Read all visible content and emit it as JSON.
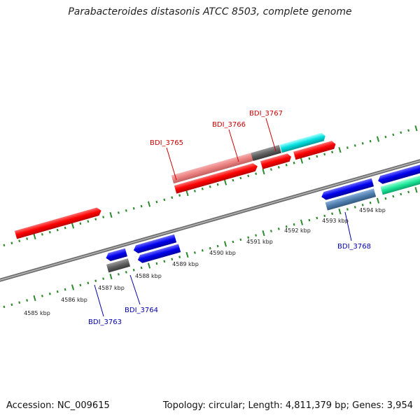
{
  "title": "Parabacteroides distasonis ATCC 8503, complete genome",
  "accession": "Accession: NC_009615",
  "summary": "Topology: circular; Length: 4,811,379 bp; Genes: 3,954",
  "colors": {
    "backbone": "#8a8a8a",
    "tick": "#2e8b2e",
    "label_top": "#cc0000",
    "label_bottom": "#0000aa"
  },
  "ticks": [
    "4585 kbp",
    "4586 kbp",
    "4587 kbp",
    "4588 kbp",
    "4589 kbp",
    "4590 kbp",
    "4591 kbp",
    "4592 kbp",
    "4593 kbp",
    "4594 kbp"
  ],
  "gene_labels": [
    {
      "name": "BDI_3765",
      "side": "top"
    },
    {
      "name": "BDI_3766",
      "side": "top"
    },
    {
      "name": "BDI_3767",
      "side": "top"
    },
    {
      "name": "BDI_3768",
      "side": "bottom"
    },
    {
      "name": "BDI_3764",
      "side": "bottom"
    },
    {
      "name": "BDI_3763",
      "side": "bottom"
    }
  ]
}
